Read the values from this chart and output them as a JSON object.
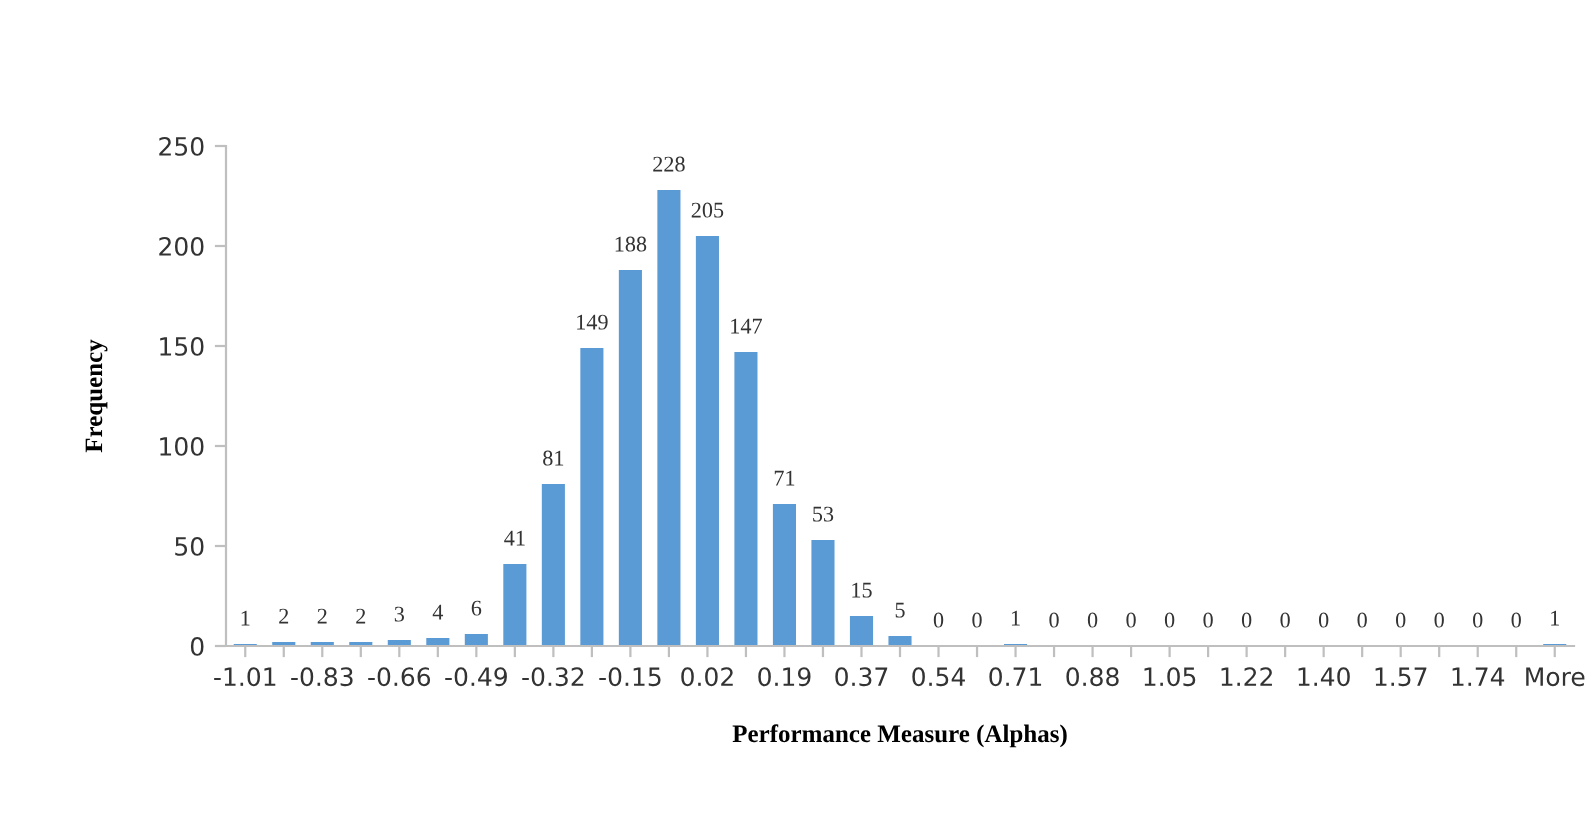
{
  "chart_data": {
    "type": "bar",
    "xlabel": "Performance Measure (Alphas)",
    "ylabel": "Frequency",
    "categories": [
      "-1.01",
      null,
      "-0.83",
      null,
      "-0.66",
      null,
      "-0.49",
      null,
      "-0.32",
      null,
      "-0.15",
      null,
      "0.02",
      null,
      "0.19",
      null,
      "0.37",
      null,
      "0.54",
      null,
      "0.71",
      null,
      "0.88",
      null,
      "1.05",
      null,
      "1.22",
      null,
      "1.40",
      null,
      "1.57",
      null,
      "1.74",
      null,
      "More"
    ],
    "values": [
      1,
      2,
      2,
      2,
      3,
      4,
      6,
      41,
      81,
      149,
      188,
      228,
      205,
      147,
      71,
      53,
      15,
      5,
      0,
      0,
      1,
      0,
      0,
      0,
      0,
      0,
      0,
      0,
      0,
      0,
      0,
      0,
      0,
      0,
      1
    ],
    "color": "#5b9bd5",
    "ylim": [
      0,
      250
    ],
    "yticks": [
      0,
      50,
      100,
      150,
      200,
      250
    ],
    "data_labels": true,
    "grid": false,
    "legend": false
  }
}
